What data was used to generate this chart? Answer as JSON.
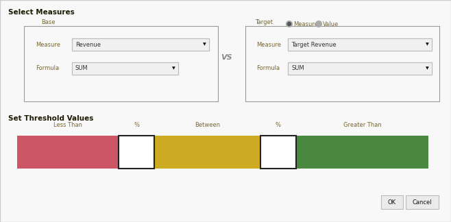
{
  "bg_color": "#f2f2f2",
  "panel_bg": "#f8f8f8",
  "border_color": "#aaaaaa",
  "title_select": "Select Measures",
  "title_threshold": "Set Threshold Values",
  "base_label": "Base",
  "target_label": "Target",
  "vs_text": "VS",
  "measure_label": "Measure",
  "formula_label": "Formula",
  "base_measure_val": "Revenue",
  "base_formula_val": "SUM",
  "target_measure_val": "Target Revenue",
  "target_formula_val": "SUM",
  "radio_measure": "Measure",
  "radio_value": "Value",
  "less_than_label": "Less Than",
  "percent1_label": "%",
  "between_label": "Between",
  "percent2_label": "%",
  "greater_than_label": "Greater Than",
  "red_color": "#cc5566",
  "yellow_color": "#ccaa22",
  "green_color": "#4a8840",
  "white_color": "#ffffff",
  "ok_label": "OK",
  "cancel_label": "Cancel",
  "title_color": "#1a1a00",
  "label_color": "#776633",
  "dropdown_text_color": "#333333",
  "title_fontsize": 7.5,
  "label_fontsize": 6.0,
  "dropdown_fontsize": 6.0,
  "btn_fontsize": 6.0
}
